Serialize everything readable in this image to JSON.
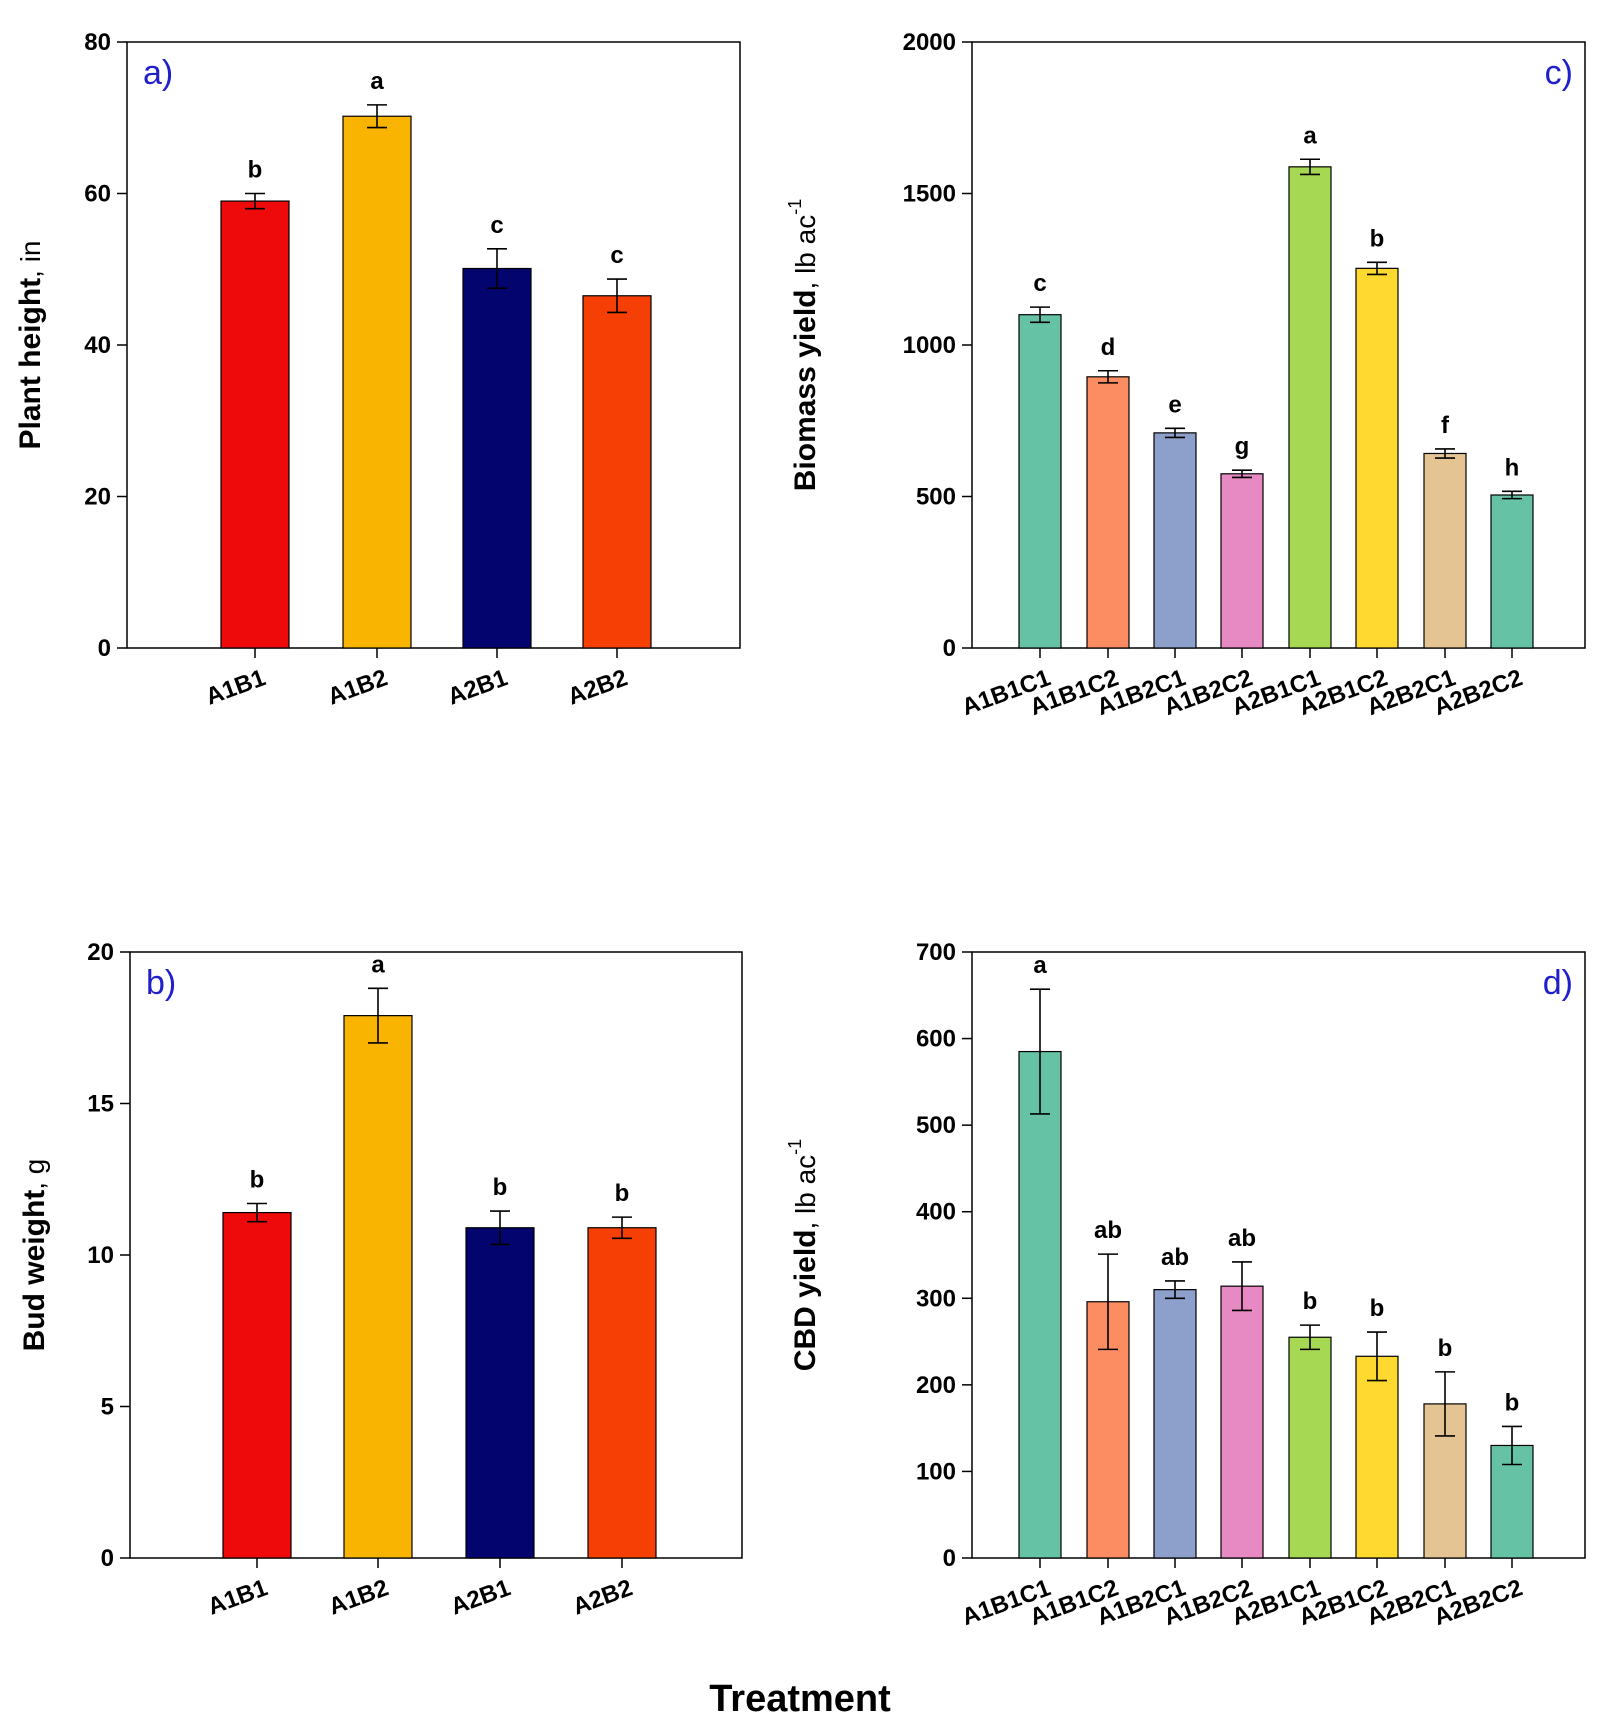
{
  "common_xlabel": "Treatment",
  "chart_data": [
    {
      "id": "a",
      "type": "bar",
      "panel_label": "a)",
      "panel_label_side": "left",
      "ylabel": "Plant height",
      "yunit": "in",
      "ysup": "",
      "ylim": [
        0,
        80
      ],
      "yticks": [
        "0",
        "20",
        "40",
        "60",
        "80"
      ],
      "categories": [
        "A1B1",
        "A1B2",
        "A2B1",
        "A2B2"
      ],
      "values": [
        59,
        70.2,
        50.1,
        46.5
      ],
      "errors": [
        1.0,
        1.5,
        2.6,
        2.2
      ],
      "letters": [
        "b",
        "a",
        "c",
        "c"
      ],
      "colors": [
        "#ee0a0a",
        "#f8b400",
        "#04046e",
        "#f53f05"
      ],
      "rotated_labels": true
    },
    {
      "id": "c",
      "type": "bar",
      "panel_label": "c)",
      "panel_label_side": "right",
      "ylabel": "Biomass yield",
      "yunit": "lb ac",
      "ysup": "-1",
      "ylim": [
        0,
        2000
      ],
      "yticks": [
        "0",
        "500",
        "1000",
        "1500",
        "2000"
      ],
      "categories": [
        "A1B1C1",
        "A1B1C2",
        "A1B2C1",
        "A1B2C2",
        "A2B1C1",
        "A2B1C2",
        "A2B2C1",
        "A2B2C2"
      ],
      "values": [
        1100,
        895,
        710,
        575,
        1588,
        1253,
        642,
        505
      ],
      "errors": [
        25,
        20,
        15,
        12,
        25,
        20,
        15,
        12
      ],
      "letters": [
        "c",
        "d",
        "e",
        "g",
        "a",
        "b",
        "f",
        "h"
      ],
      "colors": [
        "#66c2a5",
        "#fc8d62",
        "#8da0cb",
        "#e78ac3",
        "#a6d854",
        "#ffd92f",
        "#e5c494",
        "#66c2a5"
      ],
      "rotated_labels": true
    },
    {
      "id": "b",
      "type": "bar",
      "panel_label": "b)",
      "panel_label_side": "left",
      "ylabel": "Bud weight",
      "yunit": "g",
      "ysup": "",
      "ylim": [
        0,
        20
      ],
      "yticks": [
        "0",
        "5",
        "10",
        "15",
        "20"
      ],
      "categories": [
        "A1B1",
        "A1B2",
        "A2B1",
        "A2B2"
      ],
      "values": [
        11.4,
        17.9,
        10.9,
        10.9
      ],
      "errors": [
        0.3,
        0.9,
        0.55,
        0.35
      ],
      "letters": [
        "b",
        "a",
        "b",
        "b"
      ],
      "colors": [
        "#ee0a0a",
        "#f8b400",
        "#04046e",
        "#f53f05"
      ],
      "rotated_labels": true
    },
    {
      "id": "d",
      "type": "bar",
      "panel_label": "d)",
      "panel_label_side": "right",
      "ylabel": "CBD yield",
      "yunit": "lb ac",
      "ysup": "-1",
      "ylim": [
        0,
        700
      ],
      "yticks": [
        "0",
        "100",
        "200",
        "300",
        "400",
        "500",
        "600",
        "700"
      ],
      "categories": [
        "A1B1C1",
        "A1B1C2",
        "A1B2C1",
        "A1B2C2",
        "A2B1C1",
        "A2B1C2",
        "A2B2C1",
        "A2B2C2"
      ],
      "values": [
        585,
        296,
        310,
        314,
        255,
        233,
        178,
        130
      ],
      "errors": [
        72,
        55,
        10,
        28,
        14,
        28,
        37,
        22
      ],
      "letters": [
        "a",
        "ab",
        "ab",
        "ab",
        "b",
        "b",
        "b",
        "b"
      ],
      "colors": [
        "#66c2a5",
        "#fc8d62",
        "#8da0cb",
        "#e78ac3",
        "#a6d854",
        "#ffd92f",
        "#e5c494",
        "#66c2a5"
      ],
      "rotated_labels": true
    }
  ]
}
